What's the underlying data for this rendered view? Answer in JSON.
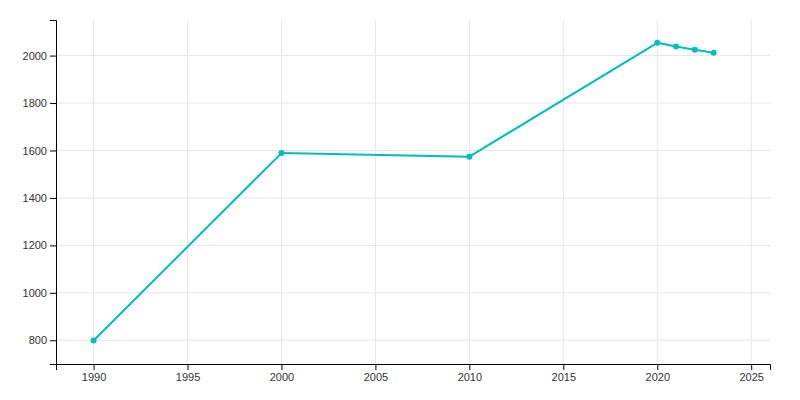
{
  "chart_data": {
    "type": "line",
    "x": [
      1990,
      2000,
      2010,
      2020,
      2021,
      2022,
      2023
    ],
    "values": [
      799,
      1589,
      1574,
      2054,
      2038,
      2025,
      2012
    ],
    "color": "#00BEBE",
    "marker": "o",
    "xlim": [
      1988,
      2026
    ],
    "ylim": [
      700,
      2150
    ],
    "xticks": [
      1990,
      1995,
      2000,
      2005,
      2010,
      2015,
      2020,
      2025
    ],
    "yticks": [
      800,
      1000,
      1200,
      1400,
      1600,
      1800,
      2000
    ],
    "grid": true
  }
}
